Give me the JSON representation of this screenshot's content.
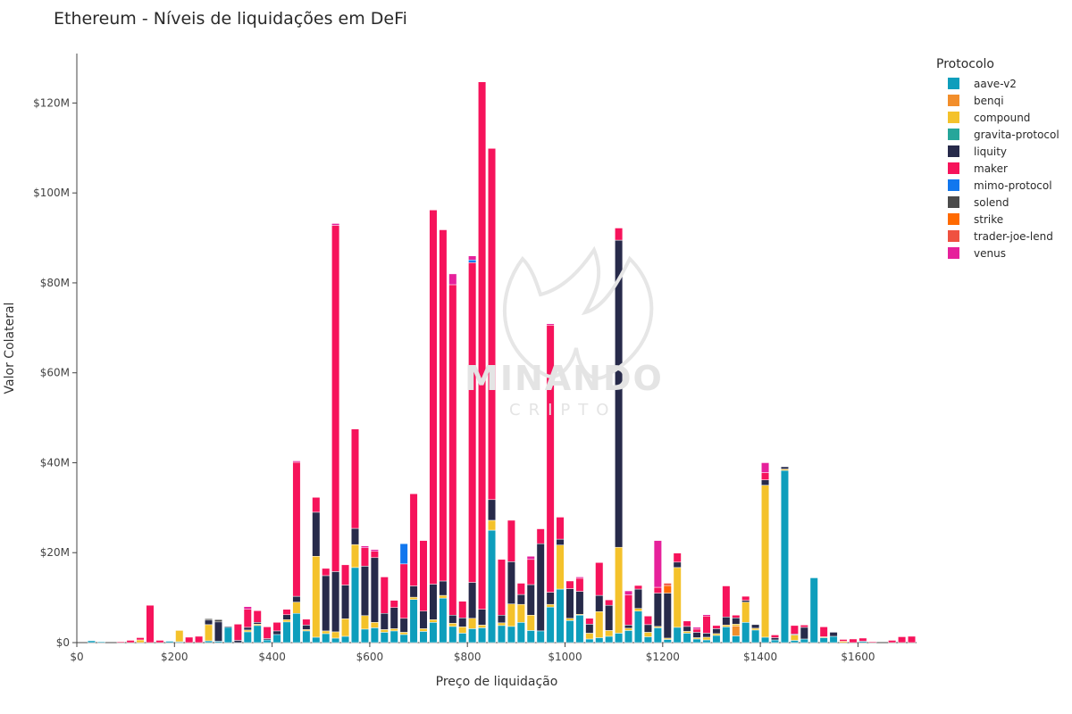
{
  "chart_data": {
    "type": "bar",
    "stacked": true,
    "title": "Ethereum - Níveis de liquidações em DeFi",
    "xlabel": "Preço de liquidação",
    "ylabel": "Valor Colateral",
    "xlim": [
      0,
      1720
    ],
    "ylim": [
      0,
      131
    ],
    "x_ticks": [
      {
        "value": 0,
        "label": "$0"
      },
      {
        "value": 200,
        "label": "$200"
      },
      {
        "value": 400,
        "label": "$400"
      },
      {
        "value": 600,
        "label": "$600"
      },
      {
        "value": 800,
        "label": "$800"
      },
      {
        "value": 1000,
        "label": "$1000"
      },
      {
        "value": 1200,
        "label": "$1200"
      },
      {
        "value": 1400,
        "label": "$1400"
      },
      {
        "value": 1600,
        "label": "$1600"
      }
    ],
    "y_ticks": [
      {
        "value": 0,
        "label": "$0"
      },
      {
        "value": 20,
        "label": "$20M"
      },
      {
        "value": 40,
        "label": "$40M"
      },
      {
        "value": 60,
        "label": "$60M"
      },
      {
        "value": 80,
        "label": "$80M"
      },
      {
        "value": 100,
        "label": "$100M"
      },
      {
        "value": 120,
        "label": "$120M"
      }
    ],
    "legend_title": "Protocolo",
    "legend_position": "right",
    "series_order": [
      "aave-v2",
      "benqi",
      "compound",
      "gravita-protocol",
      "liquity",
      "maker",
      "mimo-protocol",
      "solend",
      "strike",
      "trader-joe-lend",
      "venus"
    ],
    "colors": {
      "aave-v2": "#0e9ebc",
      "benqi": "#f28e2b",
      "compound": "#f4c22b",
      "gravita-protocol": "#26a69a",
      "liquity": "#272a4a",
      "maker": "#f6135b",
      "mimo-protocol": "#1177ee",
      "solend": "#4b4b4b",
      "strike": "#ff6a00",
      "trader-joe-lend": "#ef5140",
      "venus": "#e6219b"
    },
    "bars": [
      {
        "x": 30,
        "aave-v2": 0.4
      },
      {
        "x": 50,
        "aave-v2": 0.2
      },
      {
        "x": 90,
        "maker": 0.2
      },
      {
        "x": 110,
        "maker": 0.5
      },
      {
        "x": 130,
        "compound": 0.6,
        "maker": 0.5
      },
      {
        "x": 150,
        "maker": 8.3
      },
      {
        "x": 170,
        "maker": 0.5
      },
      {
        "x": 190,
        "aave-v2": 0.3
      },
      {
        "x": 210,
        "aave-v2": 0.2,
        "compound": 2.5
      },
      {
        "x": 230,
        "maker": 1.2
      },
      {
        "x": 250,
        "maker": 1.4
      },
      {
        "x": 270,
        "aave-v2": 0.4,
        "compound": 3.6,
        "liquity": 1.0,
        "solend": 0.3
      },
      {
        "x": 290,
        "aave-v2": 0.3,
        "liquity": 4.3,
        "solend": 0.5
      },
      {
        "x": 310,
        "aave-v2": 3.4,
        "liquity": 0.2
      },
      {
        "x": 330,
        "liquity": 0.5,
        "maker": 3.6
      },
      {
        "x": 350,
        "aave-v2": 2.4,
        "compound": 0.4,
        "liquity": 0.6,
        "maker": 4.0,
        "venus": 0.6
      },
      {
        "x": 370,
        "aave-v2": 3.8,
        "compound": 0.3,
        "liquity": 0.4,
        "maker": 2.6
      },
      {
        "x": 390,
        "aave-v2": 0.6,
        "liquity": 0.3,
        "maker": 2.6
      },
      {
        "x": 410,
        "aave-v2": 1.8,
        "liquity": 0.8,
        "maker": 1.9
      },
      {
        "x": 430,
        "aave-v2": 4.6,
        "compound": 0.5,
        "liquity": 1.1,
        "maker": 1.2
      },
      {
        "x": 450,
        "aave-v2": 6.5,
        "compound": 2.5,
        "liquity": 1.3,
        "maker": 29.8,
        "venus": 0.3
      },
      {
        "x": 470,
        "aave-v2": 2.6,
        "compound": 0.3,
        "liquity": 1.0,
        "maker": 1.3
      },
      {
        "x": 490,
        "aave-v2": 1.2,
        "compound": 18.0,
        "liquity": 9.8,
        "maker": 3.3
      },
      {
        "x": 510,
        "aave-v2": 2.0,
        "compound": 0.6,
        "liquity": 12.3,
        "maker": 1.6
      },
      {
        "x": 530,
        "aave-v2": 1.0,
        "compound": 1.4,
        "liquity": 13.4,
        "maker": 77.0,
        "venus": 0.4
      },
      {
        "x": 550,
        "aave-v2": 1.4,
        "compound": 3.9,
        "liquity": 7.5,
        "maker": 4.5
      },
      {
        "x": 570,
        "aave-v2": 16.7,
        "compound": 5.1,
        "liquity": 3.6,
        "maker": 22.1
      },
      {
        "x": 590,
        "aave-v2": 3.0,
        "compound": 3.0,
        "liquity": 11.0,
        "maker": 4.1,
        "venus": 0.4
      },
      {
        "x": 610,
        "aave-v2": 3.3,
        "compound": 1.2,
        "liquity": 14.4,
        "maker": 1.4,
        "venus": 0.4
      },
      {
        "x": 630,
        "aave-v2": 2.3,
        "compound": 0.6,
        "liquity": 3.6,
        "maker": 8.1
      },
      {
        "x": 650,
        "aave-v2": 2.6,
        "compound": 0.5,
        "liquity": 4.7,
        "maker": 1.6
      },
      {
        "x": 670,
        "aave-v2": 1.8,
        "compound": 0.5,
        "liquity": 3.1,
        "maker": 12.1,
        "mimo-protocol": 4.5
      },
      {
        "x": 690,
        "aave-v2": 9.6,
        "compound": 0.5,
        "liquity": 2.5,
        "maker": 20.5
      },
      {
        "x": 710,
        "aave-v2": 2.5,
        "compound": 0.6,
        "liquity": 3.9,
        "maker": 15.7
      },
      {
        "x": 730,
        "aave-v2": 4.5,
        "compound": 0.6,
        "liquity": 7.9,
        "maker": 83.2
      },
      {
        "x": 750,
        "aave-v2": 9.9,
        "compound": 0.6,
        "liquity": 3.2,
        "maker": 78.1
      },
      {
        "x": 770,
        "aave-v2": 3.6,
        "compound": 0.7,
        "liquity": 1.8,
        "maker": 73.5,
        "venus": 2.4
      },
      {
        "x": 790,
        "aave-v2": 2.1,
        "compound": 1.4,
        "liquity": 2.0,
        "maker": 3.7
      },
      {
        "x": 810,
        "aave-v2": 3.1,
        "compound": 2.3,
        "liquity": 8.0,
        "maker": 71.1,
        "mimo-protocol": 0.6,
        "venus": 0.9
      },
      {
        "x": 830,
        "aave-v2": 3.3,
        "compound": 0.6,
        "liquity": 3.5,
        "maker": 117.3
      },
      {
        "x": 850,
        "aave-v2": 25.0,
        "compound": 2.2,
        "liquity": 4.6,
        "maker": 78.1
      },
      {
        "x": 870,
        "aave-v2": 3.8,
        "compound": 0.6,
        "liquity": 1.7,
        "maker": 12.4
      },
      {
        "x": 890,
        "aave-v2": 3.6,
        "compound": 5.0,
        "liquity": 9.4,
        "maker": 9.2
      },
      {
        "x": 910,
        "aave-v2": 4.5,
        "compound": 4.0,
        "liquity": 2.2,
        "maker": 2.5
      },
      {
        "x": 930,
        "aave-v2": 2.7,
        "compound": 3.4,
        "liquity": 6.8,
        "maker": 5.6,
        "venus": 0.7
      },
      {
        "x": 950,
        "aave-v2": 2.6,
        "liquity": 19.4,
        "maker": 3.3
      },
      {
        "x": 970,
        "aave-v2": 7.9,
        "compound": 0.6,
        "liquity": 2.7,
        "maker": 59.4,
        "venus": 0.3
      },
      {
        "x": 990,
        "aave-v2": 11.9,
        "compound": 9.8,
        "liquity": 1.3,
        "maker": 4.9
      },
      {
        "x": 1010,
        "aave-v2": 4.9,
        "compound": 0.5,
        "liquity": 6.6,
        "maker": 1.7
      },
      {
        "x": 1030,
        "aave-v2": 6.1,
        "compound": 0.2,
        "liquity": 5.1,
        "maker": 2.9,
        "venus": 0.3
      },
      {
        "x": 1050,
        "aave-v2": 0.8,
        "compound": 1.3,
        "liquity": 2.0,
        "maker": 1.3
      },
      {
        "x": 1070,
        "aave-v2": 1.1,
        "compound": 5.8,
        "liquity": 3.6,
        "maker": 7.3
      },
      {
        "x": 1090,
        "aave-v2": 1.4,
        "compound": 1.3,
        "liquity": 5.6,
        "maker": 1.2
      },
      {
        "x": 1110,
        "aave-v2": 2.1,
        "compound": 19.1,
        "liquity": 68.3,
        "maker": 2.7
      },
      {
        "x": 1130,
        "aave-v2": 2.7,
        "compound": 0.5,
        "liquity": 0.7,
        "maker": 6.7,
        "venus": 0.9
      },
      {
        "x": 1150,
        "aave-v2": 7.0,
        "compound": 0.6,
        "liquity": 4.3,
        "maker": 0.8
      },
      {
        "x": 1170,
        "aave-v2": 1.3,
        "compound": 1.0,
        "liquity": 1.7,
        "maker": 1.9
      },
      {
        "x": 1190,
        "aave-v2": 3.3,
        "compound": 0.3,
        "liquity": 7.4,
        "maker": 1.3,
        "venus": 10.4
      },
      {
        "x": 1210,
        "aave-v2": 0.7,
        "compound": 0.3,
        "liquity": 10.0,
        "trader-joe-lend": 0.5,
        "strike": 1.7
      },
      {
        "x": 1230,
        "aave-v2": 3.4,
        "compound": 13.3,
        "liquity": 1.2,
        "maker": 2.0
      },
      {
        "x": 1250,
        "aave-v2": 2.1,
        "compound": 0.4,
        "liquity": 1.1,
        "maker": 1.2
      },
      {
        "x": 1270,
        "aave-v2": 0.8,
        "compound": 0.3,
        "liquity": 1.2,
        "maker": 0.7,
        "venus": 0.4
      },
      {
        "x": 1290,
        "aave-v2": 0.6,
        "compound": 0.6,
        "liquity": 0.9,
        "maker": 3.8,
        "venus": 0.3
      },
      {
        "x": 1310,
        "aave-v2": 1.6,
        "compound": 0.4,
        "liquity": 1.1,
        "maker": 0.7
      },
      {
        "x": 1330,
        "aave-v2": 3.5,
        "compound": 0.4,
        "liquity": 1.8,
        "maker": 6.9
      },
      {
        "x": 1350,
        "aave-v2": 1.5,
        "compound": 0.4,
        "liquity": 1.4,
        "benqi": 2.2,
        "maker": 0.6
      },
      {
        "x": 1370,
        "aave-v2": 4.5,
        "compound": 4.5,
        "liquity": 0.4,
        "maker": 0.9
      },
      {
        "x": 1390,
        "aave-v2": 2.8,
        "compound": 0.4,
        "liquity": 0.8
      },
      {
        "x": 1410,
        "aave-v2": 1.2,
        "compound": 33.8,
        "liquity": 1.2,
        "maker": 1.6,
        "venus": 2.2
      },
      {
        "x": 1430,
        "aave-v2": 0.6,
        "liquity": 0.5,
        "maker": 0.6
      },
      {
        "x": 1450,
        "aave-v2": 38.3,
        "compound": 0.3,
        "liquity": 0.5
      },
      {
        "x": 1470,
        "aave-v2": 0.5,
        "compound": 1.2,
        "liquity": 0.2,
        "maker": 1.9
      },
      {
        "x": 1490,
        "aave-v2": 0.8,
        "liquity": 2.6,
        "maker": 0.5
      },
      {
        "x": 1510,
        "aave-v2": 14.4
      },
      {
        "x": 1530,
        "aave-v2": 1.1,
        "compound": 0.2,
        "maker": 2.2
      },
      {
        "x": 1550,
        "aave-v2": 1.4,
        "liquity": 0.9
      },
      {
        "x": 1570,
        "compound": 0.3,
        "maker": 0.4
      },
      {
        "x": 1590,
        "maker": 0.8
      },
      {
        "x": 1610,
        "aave-v2": 0.3,
        "maker": 0.7
      },
      {
        "x": 1630,
        "maker": 0.2
      },
      {
        "x": 1670,
        "maker": 0.5
      },
      {
        "x": 1690,
        "maker": 1.3
      },
      {
        "x": 1710,
        "maker": 1.4
      }
    ]
  },
  "watermark": {
    "text": "MINANDO",
    "subtext": "CRIPTO"
  }
}
